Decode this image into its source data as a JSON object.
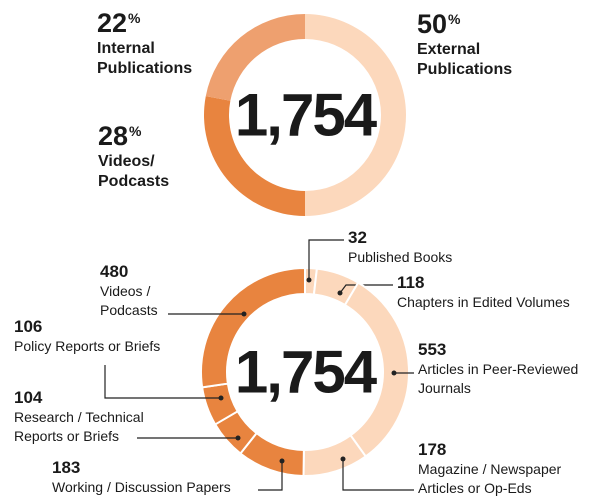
{
  "chart_data": [
    {
      "type": "donut",
      "center_text": "1,754",
      "unit": "%",
      "series": [
        {
          "name": "External\nPublications",
          "color": "#fcd8bc",
          "values": [
            50
          ]
        },
        {
          "name": "Videos/\nPodcasts",
          "color": "#e8843f",
          "values": [
            28
          ]
        },
        {
          "name": "Internal\nPublications",
          "color": "#eea06f",
          "values": [
            22
          ]
        }
      ]
    },
    {
      "type": "donut",
      "center_text": "1,754",
      "series": [
        {
          "name": "Published Books",
          "color": "#fcd8bc",
          "values": [
            32
          ]
        },
        {
          "name": "Chapters in Edited Volumes",
          "color": "#fcd8bc",
          "values": [
            118
          ]
        },
        {
          "name": "Articles in Peer-Reviewed\nJournals",
          "color": "#fcd8bc",
          "values": [
            553
          ]
        },
        {
          "name": "Magazine / Newspaper\nArticles or Op-Eds",
          "color": "#fcd8bc",
          "values": [
            178
          ]
        },
        {
          "name": "Working / Discussion Papers",
          "color": "#e8843f",
          "values": [
            183
          ]
        },
        {
          "name": "Research / Technical\nReports or Briefs",
          "color": "#e8843f",
          "values": [
            104
          ]
        },
        {
          "name": "Policy Reports or Briefs",
          "color": "#e8843f",
          "values": [
            106
          ]
        },
        {
          "name": "Videos /\nPodcasts",
          "color": "#e8843f",
          "values": [
            480
          ]
        }
      ]
    }
  ]
}
